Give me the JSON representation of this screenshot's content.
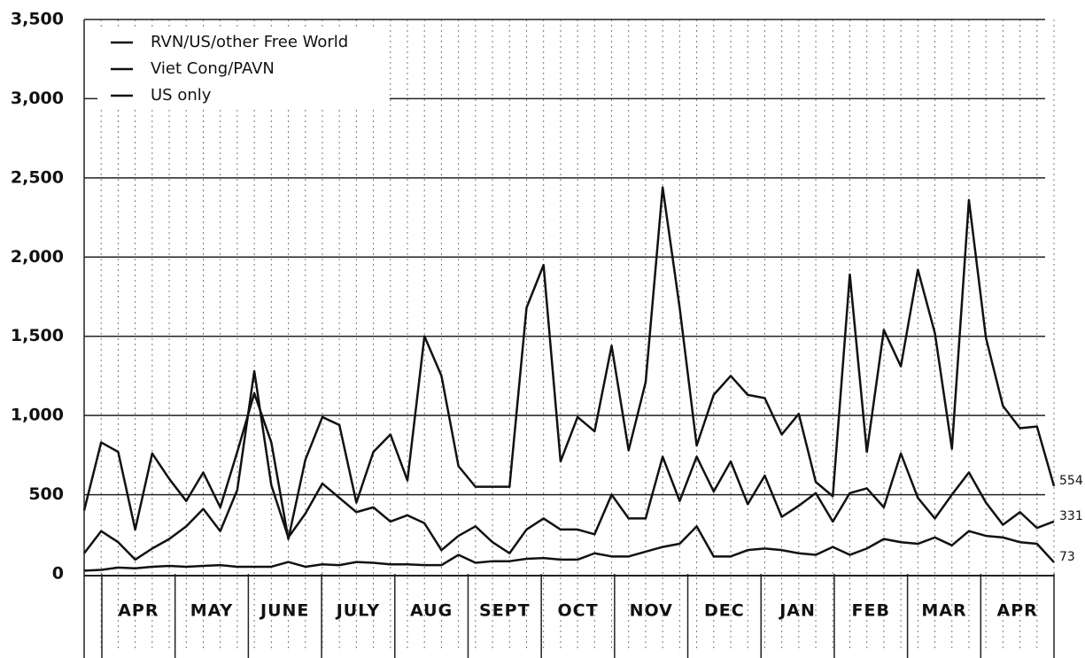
{
  "chart_data": {
    "type": "line",
    "month_labels": [
      "APR",
      "MAY",
      "JUNE",
      "JULY",
      "AUG",
      "SEPT",
      "OCT",
      "NOV",
      "DEC",
      "JAN",
      "FEB",
      "MAR",
      "APR"
    ],
    "series": [
      {
        "name": "Viet Cong/PAVN",
        "color": "#111111",
        "values": [
          400,
          830,
          770,
          280,
          760,
          600,
          460,
          640,
          420,
          770,
          1140,
          830,
          220,
          720,
          990,
          940,
          450,
          770,
          880,
          590,
          1500,
          1250,
          680,
          550,
          550,
          550,
          1680,
          1950,
          710,
          990,
          900,
          1440,
          780,
          1210,
          2440,
          1680,
          810,
          1130,
          1250,
          1130,
          1110,
          880,
          1010,
          580,
          490,
          1890,
          770,
          1540,
          1310,
          1920,
          1520,
          790,
          2360,
          1490,
          1060,
          920,
          930,
          554
        ]
      },
      {
        "name": "RVN/US/other Free World",
        "color": "#111111",
        "values": [
          130,
          270,
          200,
          90,
          160,
          220,
          300,
          410,
          270,
          530,
          1280,
          560,
          230,
          380,
          570,
          480,
          390,
          420,
          330,
          370,
          320,
          150,
          240,
          300,
          200,
          130,
          280,
          350,
          280,
          280,
          250,
          500,
          350,
          350,
          740,
          460,
          740,
          520,
          710,
          440,
          620,
          360,
          430,
          510,
          330,
          510,
          540,
          420,
          760,
          480,
          350,
          500,
          640,
          450,
          310,
          390,
          290,
          331
        ]
      },
      {
        "name": "US only",
        "color": "#111111",
        "values": [
          20,
          25,
          40,
          35,
          45,
          50,
          45,
          50,
          55,
          45,
          45,
          45,
          75,
          45,
          60,
          55,
          75,
          70,
          60,
          60,
          55,
          55,
          120,
          70,
          80,
          80,
          95,
          100,
          90,
          90,
          130,
          110,
          110,
          140,
          170,
          190,
          300,
          110,
          110,
          150,
          160,
          150,
          130,
          120,
          170,
          120,
          160,
          220,
          200,
          190,
          230,
          180,
          270,
          240,
          230,
          200,
          190,
          73
        ]
      }
    ],
    "ylim": [
      0,
      3500
    ],
    "yticks": [
      0,
      500,
      {
        "value": 1000,
        "label": "1,000"
      },
      {
        "value": 1500,
        "label": "1,500"
      },
      {
        "value": 2000,
        "label": "2,000"
      },
      {
        "value": 2500,
        "label": "2,500"
      },
      {
        "value": 3000,
        "label": "3,000"
      },
      {
        "value": 3500,
        "label": "3,500"
      }
    ],
    "grid": true
  }
}
